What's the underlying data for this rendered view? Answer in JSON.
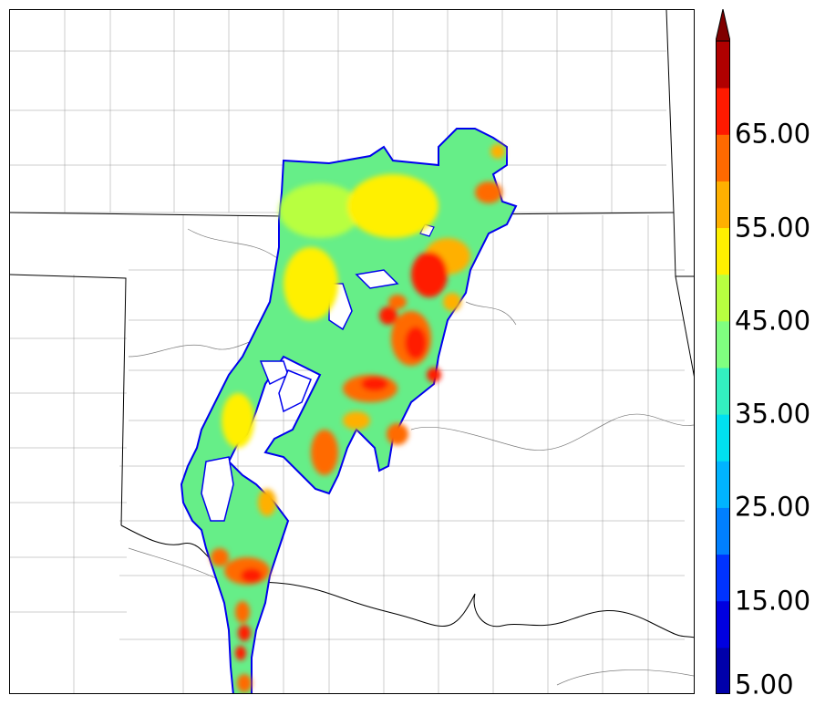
{
  "map": {
    "layers": [
      "county-lines",
      "state-lines",
      "river-lines",
      "precipitation-swath"
    ]
  },
  "colorbar": {
    "tick_labels": [
      "5.00",
      "15.00",
      "25.00",
      "35.00",
      "45.00",
      "55.00",
      "65.00"
    ],
    "levels": [
      5,
      10,
      15,
      20,
      25,
      30,
      35,
      40,
      45,
      50,
      55,
      60,
      65,
      70
    ],
    "colors": [
      "#0000aa",
      "#0000e0",
      "#0033ff",
      "#0080ff",
      "#00b4ff",
      "#00e0f0",
      "#33f0c0",
      "#80ff80",
      "#b8ff40",
      "#fff000",
      "#ffb000",
      "#ff6a00",
      "#ff1a00",
      "#b00000"
    ],
    "extend_color": "#800000",
    "extend": "max"
  }
}
